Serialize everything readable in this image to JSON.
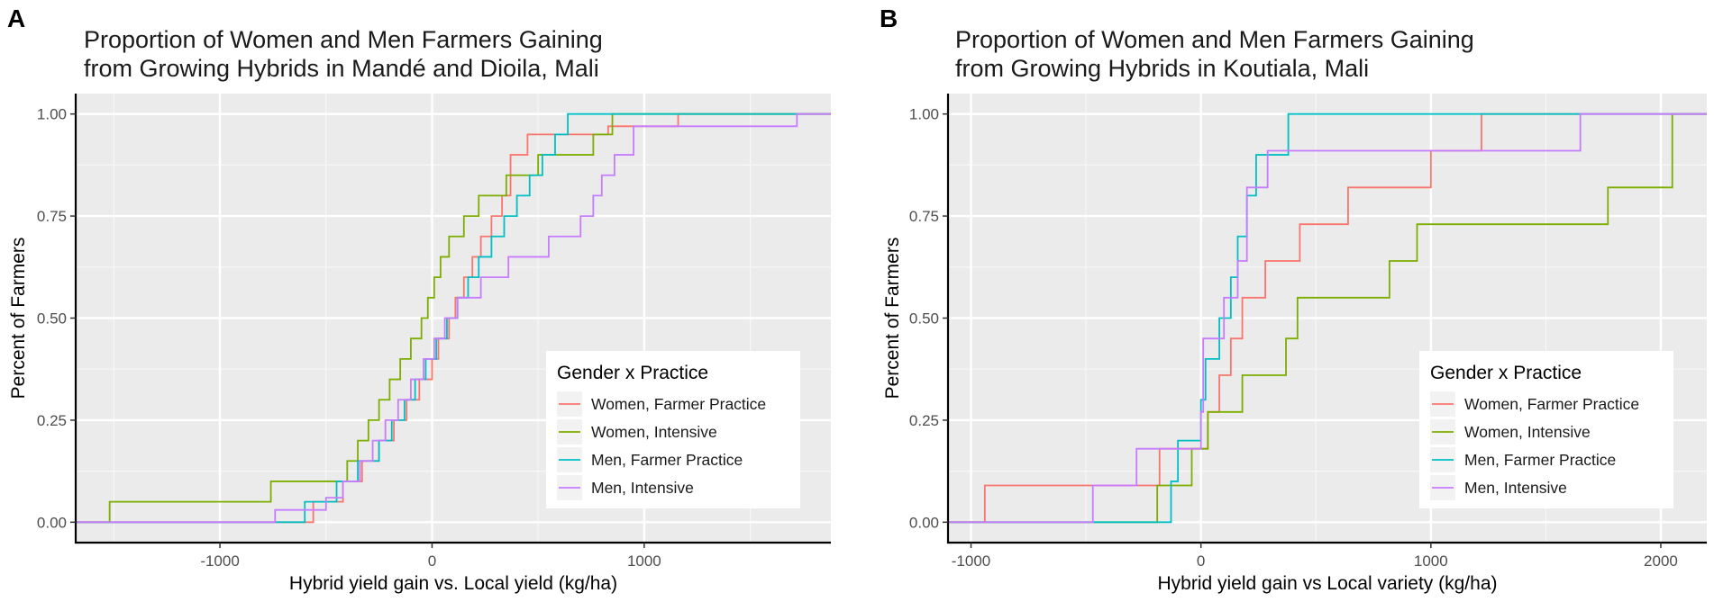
{
  "chart_data": [
    {
      "panel": "A",
      "type": "line",
      "subtype": "ecdf-step",
      "title_lines": [
        "Proportion of Women and Men Farmers Gaining",
        "from Growing Hybrids in Mandé and Dioila, Mali"
      ],
      "xlabel": "Hybrid yield gain vs. Local yield (kg/ha)",
      "ylabel": "Percent of Farmers",
      "xlim": [
        -1680,
        1880
      ],
      "ylim": [
        -0.05,
        1.05
      ],
      "xticks": [
        -1000,
        0,
        1000
      ],
      "xtick_labels": [
        "-1000",
        "0",
        "1000"
      ],
      "yticks": [
        0,
        0.25,
        0.5,
        0.75,
        1.0
      ],
      "ytick_labels": [
        "0.00",
        "0.25",
        "0.50",
        "0.75",
        "1.00"
      ],
      "grid": true,
      "legend": {
        "title": "Gender x Practice",
        "position": "bottom-right",
        "entries": [
          "Women, Farmer Practice",
          "Women, Intensive",
          "Men, Farmer Practice",
          "Men, Intensive"
        ]
      },
      "series": [
        {
          "name": "Women, Farmer Practice",
          "color": "#F8766D",
          "x": [
            -560,
            -420,
            -330,
            -250,
            -180,
            -120,
            -60,
            0,
            30,
            80,
            110,
            150,
            190,
            230,
            280,
            330,
            370,
            450,
            830,
            1160
          ],
          "y": [
            0.05,
            0.1,
            0.15,
            0.2,
            0.25,
            0.3,
            0.35,
            0.4,
            0.45,
            0.5,
            0.55,
            0.6,
            0.65,
            0.7,
            0.75,
            0.8,
            0.9,
            0.95,
            0.97,
            1.0
          ]
        },
        {
          "name": "Women, Intensive",
          "color": "#7CAE00",
          "x": [
            -1520,
            -760,
            -400,
            -350,
            -300,
            -250,
            -200,
            -150,
            -100,
            -50,
            -20,
            10,
            40,
            80,
            150,
            220,
            350,
            500,
            760,
            850
          ],
          "y": [
            0.05,
            0.1,
            0.15,
            0.2,
            0.25,
            0.3,
            0.35,
            0.4,
            0.45,
            0.5,
            0.55,
            0.6,
            0.65,
            0.7,
            0.75,
            0.8,
            0.85,
            0.9,
            0.95,
            1.0
          ]
        },
        {
          "name": "Men, Farmer Practice",
          "color": "#00BFC4",
          "x": [
            -600,
            -450,
            -350,
            -250,
            -190,
            -130,
            -80,
            -30,
            20,
            70,
            120,
            170,
            220,
            280,
            340,
            400,
            460,
            520,
            580,
            640
          ],
          "y": [
            0.05,
            0.1,
            0.15,
            0.2,
            0.25,
            0.3,
            0.35,
            0.4,
            0.45,
            0.5,
            0.55,
            0.6,
            0.65,
            0.7,
            0.75,
            0.8,
            0.85,
            0.9,
            0.95,
            1.0
          ]
        },
        {
          "name": "Men, Intensive",
          "color": "#C77CFF",
          "x": [
            -740,
            -500,
            -420,
            -340,
            -280,
            -220,
            -160,
            -100,
            -40,
            10,
            60,
            120,
            230,
            360,
            550,
            700,
            760,
            800,
            860,
            950,
            1720
          ],
          "y": [
            0.03,
            0.06,
            0.1,
            0.15,
            0.2,
            0.25,
            0.3,
            0.35,
            0.4,
            0.45,
            0.5,
            0.55,
            0.6,
            0.65,
            0.7,
            0.75,
            0.8,
            0.85,
            0.9,
            0.97,
            1.0
          ]
        }
      ]
    },
    {
      "panel": "B",
      "type": "line",
      "subtype": "ecdf-step",
      "title_lines": [
        "Proportion of Women and Men Farmers Gaining",
        "from Growing Hybrids in Koutiala, Mali"
      ],
      "xlabel": "Hybrid yield gain vs Local variety (kg/ha)",
      "ylabel": "Percent of Farmers",
      "xlim": [
        -1100,
        2200
      ],
      "ylim": [
        -0.05,
        1.05
      ],
      "xticks": [
        -1000,
        0,
        1000,
        2000
      ],
      "xtick_labels": [
        "-1000",
        "0",
        "1000",
        "2000"
      ],
      "yticks": [
        0,
        0.25,
        0.5,
        0.75,
        1.0
      ],
      "ytick_labels": [
        "0.00",
        "0.25",
        "0.50",
        "0.75",
        "1.00"
      ],
      "grid": true,
      "legend": {
        "title": "Gender x Practice",
        "position": "bottom-right",
        "entries": [
          "Women, Farmer Practice",
          "Women, Intensive",
          "Men, Farmer Practice",
          "Men, Intensive"
        ]
      },
      "series": [
        {
          "name": "Women, Farmer Practice",
          "color": "#F8766D",
          "x": [
            -940,
            -180,
            30,
            80,
            130,
            180,
            280,
            430,
            640,
            1000,
            1220
          ],
          "y": [
            0.09,
            0.18,
            0.27,
            0.36,
            0.45,
            0.55,
            0.64,
            0.73,
            0.82,
            0.91,
            1.0
          ]
        },
        {
          "name": "Women, Intensive",
          "color": "#7CAE00",
          "x": [
            -190,
            -40,
            30,
            180,
            370,
            420,
            820,
            940,
            1770,
            2050
          ],
          "y": [
            0.09,
            0.18,
            0.27,
            0.36,
            0.45,
            0.55,
            0.64,
            0.73,
            0.82,
            1.0
          ]
        },
        {
          "name": "Men, Farmer Practice",
          "color": "#00BFC4",
          "x": [
            -130,
            -100,
            0,
            20,
            80,
            130,
            160,
            200,
            240,
            380
          ],
          "y": [
            0.1,
            0.2,
            0.3,
            0.4,
            0.5,
            0.6,
            0.7,
            0.8,
            0.9,
            1.0
          ]
        },
        {
          "name": "Men, Intensive",
          "color": "#C77CFF",
          "x": [
            -470,
            -280,
            0,
            10,
            100,
            160,
            200,
            290,
            1650
          ],
          "y": [
            0.09,
            0.18,
            0.27,
            0.45,
            0.55,
            0.64,
            0.82,
            0.91,
            1.0
          ]
        }
      ]
    }
  ]
}
